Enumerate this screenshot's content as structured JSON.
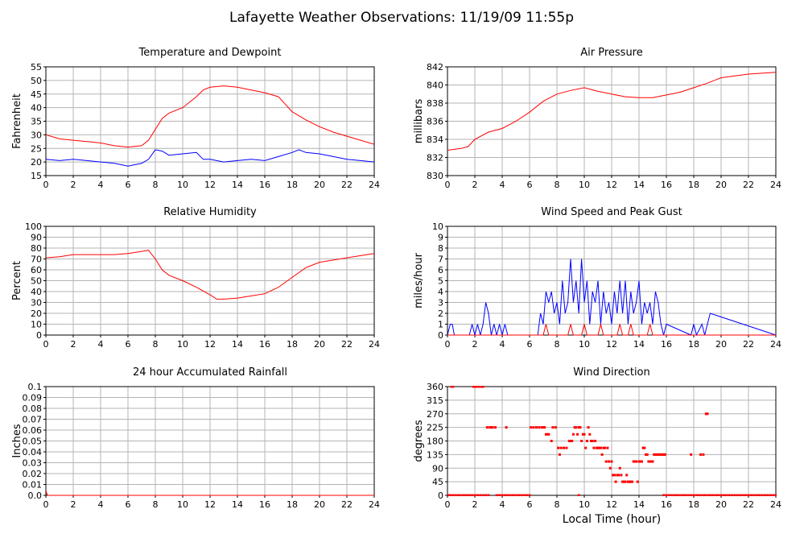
{
  "page_title": "Lafayette Weather Observations: 11/19/09 11:55p",
  "x_axis_title": "Local Time (hour)",
  "colors": {
    "primary": "#ff0000",
    "secondary": "#0000ff",
    "grid": "#b4b4b4",
    "axis": "#000000"
  },
  "chart_data": [
    {
      "id": "temp",
      "type": "line",
      "title": "Temperature and Dewpoint",
      "ylabel": "Fahrenheit",
      "xlim": [
        0,
        24
      ],
      "ylim": [
        15,
        55
      ],
      "xticks": [
        0,
        2,
        4,
        6,
        8,
        10,
        12,
        14,
        16,
        18,
        20,
        22,
        24
      ],
      "yticks": [
        15,
        20,
        25,
        30,
        35,
        40,
        45,
        50,
        55
      ],
      "ytick_labels": [
        "15",
        "20",
        "25",
        "30",
        "35",
        "40",
        "45",
        "50",
        "55"
      ],
      "series": [
        {
          "color": "#ff0000",
          "x": [
            0,
            1,
            2,
            3,
            4,
            5,
            6,
            7,
            7.5,
            8,
            8.5,
            9,
            10,
            11,
            11.5,
            12,
            13,
            14,
            15,
            16,
            17,
            18,
            19,
            20,
            21,
            22,
            23,
            24
          ],
          "y": [
            30,
            28.5,
            28,
            27.5,
            27,
            26,
            25.5,
            26,
            28,
            32,
            36,
            38,
            40,
            44,
            46.5,
            47.5,
            48,
            47.5,
            46.5,
            45.5,
            44,
            38.5,
            35.5,
            33,
            31,
            29.5,
            28,
            26.5
          ]
        },
        {
          "color": "#0000ff",
          "x": [
            0,
            1,
            2,
            3,
            4,
            5,
            6,
            7,
            7.5,
            8,
            8.5,
            9,
            10,
            11,
            11.5,
            12,
            13,
            14,
            15,
            16,
            17,
            18,
            18.5,
            19,
            20,
            21,
            22,
            23,
            24
          ],
          "y": [
            21,
            20.5,
            21,
            20.5,
            20,
            19.5,
            18.5,
            19.5,
            21,
            24.5,
            24,
            22.5,
            23,
            23.5,
            21,
            21,
            20,
            20.5,
            21,
            20.5,
            22,
            23.5,
            24.5,
            23.5,
            23,
            22,
            21,
            20.5,
            20
          ]
        }
      ]
    },
    {
      "id": "pressure",
      "type": "line",
      "title": "Air Pressure",
      "ylabel": "millibars",
      "xlim": [
        0,
        24
      ],
      "ylim": [
        830,
        842
      ],
      "xticks": [
        0,
        2,
        4,
        6,
        8,
        10,
        12,
        14,
        16,
        18,
        20,
        22,
        24
      ],
      "yticks": [
        830,
        832,
        834,
        836,
        838,
        840,
        842
      ],
      "ytick_labels": [
        "830",
        "832",
        "834",
        "836",
        "838",
        "840",
        "842"
      ],
      "series": [
        {
          "color": "#ff0000",
          "x": [
            0,
            1,
            1.5,
            2,
            3,
            4,
            5,
            6,
            7,
            8,
            9,
            10,
            11,
            12,
            13,
            14,
            15,
            16,
            17,
            18,
            19,
            20,
            21,
            22,
            23,
            24
          ],
          "y": [
            832.8,
            833,
            833.2,
            834,
            834.8,
            835.2,
            836,
            837,
            838.2,
            839,
            839.4,
            839.7,
            839.3,
            839,
            838.7,
            838.6,
            838.6,
            838.9,
            839.2,
            839.7,
            840.2,
            840.8,
            841,
            841.2,
            841.3,
            841.4
          ]
        }
      ]
    },
    {
      "id": "humidity",
      "type": "line",
      "title": "Relative Humidity",
      "ylabel": "Percent",
      "xlim": [
        0,
        24
      ],
      "ylim": [
        0,
        100
      ],
      "xticks": [
        0,
        2,
        4,
        6,
        8,
        10,
        12,
        14,
        16,
        18,
        20,
        22,
        24
      ],
      "yticks": [
        0,
        10,
        20,
        30,
        40,
        50,
        60,
        70,
        80,
        90,
        100
      ],
      "ytick_labels": [
        "0",
        "10",
        "20",
        "30",
        "40",
        "50",
        "60",
        "70",
        "80",
        "90",
        "100"
      ],
      "series": [
        {
          "color": "#ff0000",
          "x": [
            0,
            1,
            2,
            3,
            4,
            5,
            6,
            7,
            7.5,
            8,
            8.5,
            9,
            10,
            11,
            12,
            12.5,
            13,
            14,
            15,
            16,
            17,
            18,
            19,
            20,
            21,
            22,
            23,
            24
          ],
          "y": [
            71,
            72,
            74,
            74,
            74,
            74,
            75,
            77,
            78,
            70,
            60,
            55,
            50,
            44,
            37,
            33,
            33,
            34,
            36,
            38,
            44,
            53,
            62,
            67,
            69,
            71,
            73,
            75
          ]
        }
      ]
    },
    {
      "id": "wind",
      "type": "line",
      "title": "Wind Speed and Peak Gust",
      "ylabel": "miles/hour",
      "xlim": [
        0,
        24
      ],
      "ylim": [
        0,
        10
      ],
      "xticks": [
        0,
        2,
        4,
        6,
        8,
        10,
        12,
        14,
        16,
        18,
        20,
        22,
        24
      ],
      "yticks": [
        0,
        1,
        2,
        3,
        4,
        5,
        6,
        7,
        8,
        9,
        10
      ],
      "ytick_labels": [
        "0",
        "1",
        "2",
        "3",
        "4",
        "5",
        "6",
        "7",
        "8",
        "9",
        "10"
      ],
      "series": [
        {
          "color": "#0000ff",
          "x": [
            0,
            0.2,
            0.35,
            0.5,
            1.6,
            1.8,
            2.0,
            2.2,
            2.4,
            2.6,
            2.8,
            3.0,
            3.2,
            3.4,
            3.6,
            3.8,
            4.0,
            4.2,
            4.4,
            6.0,
            6.6,
            6.8,
            7.0,
            7.2,
            7.4,
            7.6,
            7.8,
            8.0,
            8.2,
            8.4,
            8.6,
            8.8,
            9.0,
            9.2,
            9.4,
            9.6,
            9.8,
            10.0,
            10.2,
            10.4,
            10.6,
            10.8,
            11.0,
            11.2,
            11.4,
            11.6,
            11.8,
            12.0,
            12.2,
            12.4,
            12.6,
            12.8,
            13.0,
            13.2,
            13.4,
            13.6,
            13.8,
            14.0,
            14.2,
            14.4,
            14.6,
            14.8,
            15.0,
            15.2,
            15.4,
            15.6,
            15.8,
            16.0,
            17.8,
            18.0,
            18.2,
            18.6,
            18.8,
            19.0,
            19.2,
            24
          ],
          "y": [
            0,
            1,
            1,
            0,
            0,
            1,
            0,
            1,
            0,
            1,
            3,
            2,
            0,
            1,
            0,
            1,
            0,
            1,
            0,
            0,
            0,
            2,
            1,
            4,
            3,
            4,
            2,
            3,
            1,
            5,
            2,
            3,
            7,
            3,
            5,
            2,
            7,
            3,
            5,
            1,
            4,
            3,
            5,
            1,
            4,
            2,
            3,
            1,
            4,
            2,
            5,
            2,
            5,
            1,
            4,
            2,
            3,
            5,
            1,
            3,
            2,
            3,
            1,
            4,
            3,
            1,
            0,
            1,
            0,
            1,
            0,
            1,
            0,
            1,
            2,
            0
          ]
        },
        {
          "color": "#ff0000",
          "x": [
            0,
            7.0,
            7.2,
            7.4,
            8.8,
            9.0,
            9.2,
            9.8,
            10.0,
            10.2,
            11.0,
            11.2,
            11.4,
            12.4,
            12.6,
            12.8,
            13.2,
            13.4,
            13.6,
            14.6,
            14.8,
            15.0,
            24
          ],
          "y": [
            0,
            0,
            1,
            0,
            0,
            1,
            0,
            0,
            1,
            0,
            0,
            1,
            0,
            0,
            1,
            0,
            0,
            1,
            0,
            0,
            1,
            0,
            0
          ]
        }
      ]
    },
    {
      "id": "rain",
      "type": "line",
      "title": "24 hour Accumulated Rainfall",
      "ylabel": "Inches",
      "xlim": [
        0,
        24
      ],
      "ylim": [
        0,
        0.1
      ],
      "xticks": [
        0,
        2,
        4,
        6,
        8,
        10,
        12,
        14,
        16,
        18,
        20,
        22,
        24
      ],
      "yticks": [
        0,
        0.01,
        0.02,
        0.03,
        0.04,
        0.05,
        0.06,
        0.07,
        0.08,
        0.09,
        0.1
      ],
      "ytick_labels": [
        "0.0",
        "0.01",
        "0.02",
        "0.03",
        "0.04",
        "0.05",
        "0.06",
        "0.07",
        "0.08",
        "0.09",
        "0.1"
      ],
      "series": [
        {
          "color": "#ff0000",
          "x": [
            0,
            0.05,
            0.15,
            24
          ],
          "y": [
            0.005,
            0.002,
            0,
            0
          ]
        }
      ]
    },
    {
      "id": "direction",
      "type": "scatter",
      "title": "Wind Direction",
      "ylabel": "degrees",
      "xlim": [
        0,
        24
      ],
      "ylim": [
        0,
        360
      ],
      "xticks": [
        0,
        2,
        4,
        6,
        8,
        10,
        12,
        14,
        16,
        18,
        20,
        22,
        24
      ],
      "yticks": [
        0,
        45,
        90,
        135,
        180,
        225,
        270,
        315,
        360
      ],
      "ytick_labels": [
        "0",
        "45",
        "90",
        "135",
        "180",
        "225",
        "270",
        "315",
        "360"
      ],
      "series": [
        {
          "color": "#ff0000",
          "x": [
            0.15,
            0.3,
            0.4,
            1.9,
            2.0,
            2.1,
            2.3,
            2.5,
            2.6,
            2.9,
            3.1,
            3.2,
            3.3,
            3.5,
            4.3,
            6.1,
            6.3,
            6.5,
            6.7,
            6.9,
            7.0,
            7.1,
            7.2,
            7.3,
            7.4,
            7.6,
            7.7,
            7.9,
            8.1,
            8.2,
            8.3,
            8.5,
            8.7,
            8.9,
            9.0,
            9.1,
            9.2,
            9.3,
            9.4,
            9.5,
            9.6,
            9.7,
            9.8,
            9.9,
            10.0,
            10.1,
            10.2,
            10.3,
            10.4,
            10.5,
            10.6,
            10.7,
            10.8,
            10.9,
            11.0,
            11.1,
            11.2,
            11.3,
            11.4,
            11.5,
            11.6,
            11.7,
            11.8,
            11.9,
            12.0,
            12.1,
            12.2,
            12.3,
            12.4,
            12.5,
            12.6,
            12.7,
            12.8,
            12.9,
            13.0,
            13.1,
            13.2,
            13.3,
            13.4,
            13.5,
            13.6,
            13.7,
            13.8,
            13.9,
            14.0,
            14.1,
            14.2,
            14.3,
            14.4,
            14.5,
            14.6,
            14.7,
            14.8,
            14.9,
            15.0,
            15.1,
            15.2,
            15.3,
            15.4,
            15.5,
            15.6,
            15.7,
            15.8,
            15.9,
            17.8,
            18.5,
            18.7,
            18.9,
            19.0
          ],
          "y": [
            0,
            360,
            360,
            360,
            360,
            360,
            360,
            360,
            360,
            225,
            225,
            225,
            225,
            225,
            225,
            225,
            225,
            225,
            225,
            225,
            225,
            225,
            202,
            202,
            202,
            180,
            225,
            225,
            157,
            135,
            157,
            157,
            157,
            180,
            180,
            180,
            202,
            225,
            225,
            202,
            225,
            225,
            180,
            202,
            202,
            157,
            180,
            225,
            202,
            180,
            180,
            157,
            180,
            157,
            157,
            157,
            157,
            135,
            157,
            157,
            112,
            157,
            112,
            90,
            112,
            67,
            67,
            45,
            67,
            67,
            90,
            67,
            45,
            45,
            45,
            67,
            45,
            45,
            45,
            45,
            112,
            112,
            112,
            45,
            112,
            112,
            112,
            157,
            157,
            135,
            135,
            112,
            112,
            112,
            112,
            135,
            135,
            135,
            135,
            135,
            135,
            135,
            135,
            135,
            135,
            135,
            135,
            270,
            270
          ]
        },
        {
          "color": "#ff0000",
          "x": [
            0,
            0.2,
            0.4,
            0.6,
            0.8,
            1.0,
            1.2,
            1.4,
            1.6,
            1.8,
            2.0,
            2.2,
            2.4,
            2.6,
            2.8,
            3.0,
            3.6,
            3.8,
            4.0,
            4.2,
            4.4,
            4.6,
            4.8,
            5.0,
            5.2,
            5.4,
            5.6,
            5.8,
            6.0,
            9.6,
            15.8,
            16.0,
            16.2,
            16.4,
            16.6,
            16.8,
            17.0,
            17.2,
            17.4,
            17.6,
            17.8,
            18.0,
            18.2,
            18.4,
            18.6,
            18.8,
            19.0,
            19.2,
            19.4,
            19.6,
            19.8,
            20.0,
            20.2,
            20.4,
            20.6,
            20.8,
            21.0,
            21.2,
            21.4,
            21.6,
            21.8,
            22.0,
            22.2,
            22.4,
            22.6,
            22.8,
            23.0,
            23.2,
            23.4,
            23.6,
            23.8,
            24
          ],
          "y": [
            0,
            0,
            0,
            0,
            0,
            0,
            0,
            0,
            0,
            0,
            0,
            0,
            0,
            0,
            0,
            0,
            0,
            0,
            0,
            0,
            0,
            0,
            0,
            0,
            0,
            0,
            0,
            0,
            0,
            0,
            0,
            0,
            0,
            0,
            0,
            0,
            0,
            0,
            0,
            0,
            0,
            0,
            0,
            0,
            0,
            0,
            0,
            0,
            0,
            0,
            0,
            0,
            0,
            0,
            0,
            0,
            0,
            0,
            0,
            0,
            0,
            0,
            0,
            0,
            0,
            0,
            0,
            0,
            0,
            0,
            0,
            0
          ]
        }
      ]
    }
  ]
}
